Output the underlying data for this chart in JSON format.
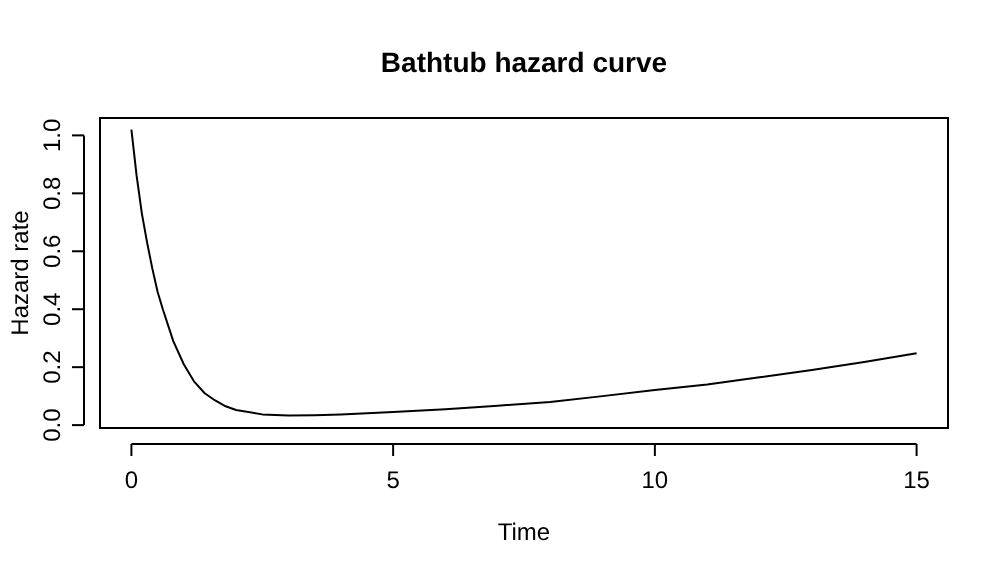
{
  "chart_data": {
    "type": "line",
    "title": "Bathtub hazard curve",
    "xlabel": "Time",
    "ylabel": "Hazard rate",
    "x": [
      0,
      0.1,
      0.2,
      0.3,
      0.4,
      0.5,
      0.6,
      0.8,
      1.0,
      1.2,
      1.4,
      1.6,
      1.8,
      2.0,
      2.5,
      3.0,
      3.5,
      4.0,
      5,
      6,
      7,
      8,
      9,
      10,
      11,
      12,
      13,
      14,
      15
    ],
    "series": [
      {
        "color": "#000000",
        "values": [
          1.02,
          0.86,
          0.73,
          0.63,
          0.54,
          0.46,
          0.4,
          0.29,
          0.21,
          0.15,
          0.11,
          0.085,
          0.065,
          0.052,
          0.037,
          0.033,
          0.034,
          0.037,
          0.045,
          0.055,
          0.067,
          0.08,
          0.1,
          0.121,
          0.14,
          0.165,
          0.19,
          0.218,
          0.248
        ]
      }
    ],
    "xlim": [
      -0.6,
      15.6
    ],
    "ylim": [
      -0.01,
      1.06
    ],
    "xticks": [
      0,
      5,
      10,
      15
    ],
    "yticks": [
      {
        "value": 0,
        "label": "0.0"
      },
      {
        "value": 0.2,
        "label": "0.2"
      },
      {
        "value": 0.4,
        "label": "0.4"
      },
      {
        "value": 0.6,
        "label": "0.6"
      },
      {
        "value": 0.8,
        "label": "0.8"
      },
      {
        "value": 1,
        "label": "1.0"
      }
    ],
    "marker": "none",
    "line_style": "solid"
  }
}
